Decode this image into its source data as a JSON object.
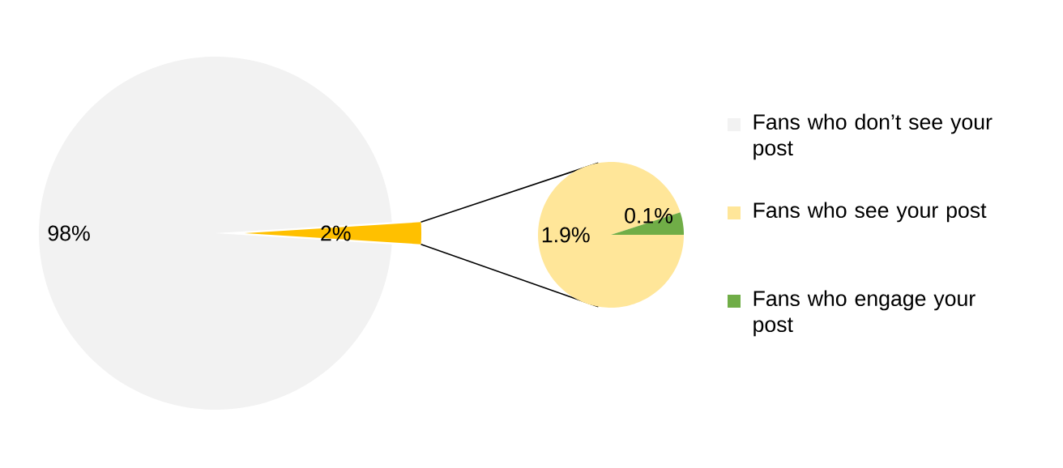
{
  "chart_data": [
    {
      "type": "pie",
      "categories": [
        "Fans who don’t see your post",
        null
      ],
      "values": [
        98,
        2
      ],
      "colors": [
        "#f2f2f2",
        "#ffc000"
      ],
      "value_labels": [
        "98%",
        "2%"
      ],
      "legend": "right"
    },
    {
      "type": "pie",
      "categories": [
        "Fans who see your post",
        "Fans who engage your post"
      ],
      "values": [
        1.9,
        0.1
      ],
      "colors": [
        "#ffe699",
        "#70ad47"
      ],
      "value_labels": [
        "1.9%",
        "0.1%"
      ],
      "legend": "right"
    }
  ]
}
